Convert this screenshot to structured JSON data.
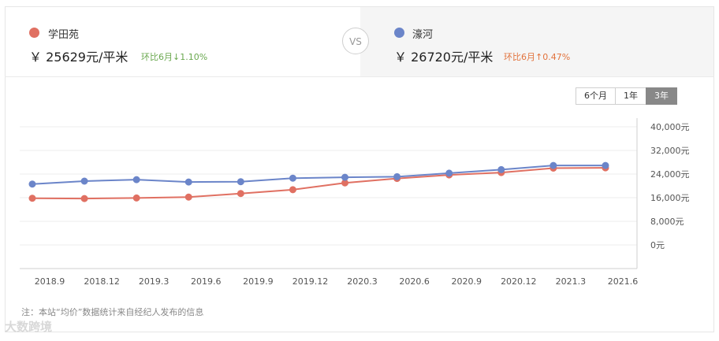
{
  "compare": {
    "left": {
      "name": "学田苑",
      "price": "￥ 25629元/平米",
      "change": "环比6月↓1.10%",
      "color": "#e07062",
      "change_color": "#6aa84f"
    },
    "vs": "VS",
    "right": {
      "name": "濠河",
      "price": "￥ 26720元/平米",
      "change": "环比6月↑0.47%",
      "color": "#6b85c9",
      "change_color": "#e2733d"
    }
  },
  "range_buttons": [
    {
      "label": "6个月",
      "active": false
    },
    {
      "label": "1年",
      "active": false
    },
    {
      "label": "3年",
      "active": true
    }
  ],
  "chart_data": {
    "type": "line",
    "x_ticks": [
      "2018.9",
      "2018.12",
      "2019.3",
      "2019.6",
      "2019.9",
      "2019.12",
      "2020.3",
      "2020.6",
      "2020.9",
      "2020.12",
      "2021.3",
      "2021.6"
    ],
    "y_ticks": [
      "40,000元",
      "32,000元",
      "24,000元",
      "16,000元",
      "8,000元",
      "0元"
    ],
    "ylim": [
      0,
      40000
    ],
    "grid": true,
    "series": [
      {
        "name": "学田苑",
        "color": "#e07062",
        "x": [
          "2018.8",
          "2018.11",
          "2019.2",
          "2019.5",
          "2019.8",
          "2019.11",
          "2020.2",
          "2020.5",
          "2020.8",
          "2020.11",
          "2021.2",
          "2021.5"
        ],
        "values": [
          15800,
          15700,
          15900,
          16200,
          17400,
          18700,
          21000,
          22500,
          23700,
          24500,
          26000,
          26100
        ]
      },
      {
        "name": "濠河",
        "color": "#6b85c9",
        "x": [
          "2018.8",
          "2018.11",
          "2019.2",
          "2019.5",
          "2019.8",
          "2019.11",
          "2020.2",
          "2020.5",
          "2020.8",
          "2020.11",
          "2021.2",
          "2021.5"
        ],
        "values": [
          20600,
          21600,
          22100,
          21300,
          21400,
          22600,
          22900,
          23100,
          24300,
          25500,
          26900,
          26900
        ]
      }
    ]
  },
  "note": "注：本站“均价”数据统计来自经纪人发布的信息",
  "watermark": "大数跨境"
}
